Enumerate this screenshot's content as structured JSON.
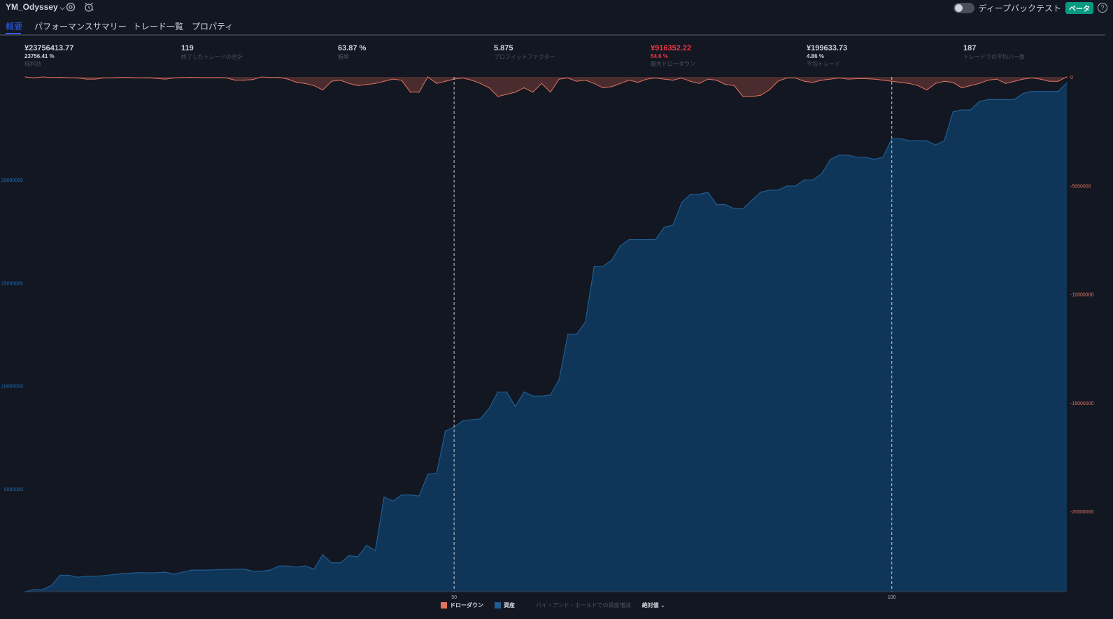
{
  "header": {
    "strategy_name": "YM_Odyssey",
    "deep_backtest_label": "ディープバックテスト",
    "beta_badge": "ベータ",
    "help_symbol": "?",
    "icons": [
      "chevron-down-icon",
      "settings-icon",
      "alarm-clock-icon",
      "help-icon"
    ]
  },
  "tabs": [
    {
      "label": "概要",
      "active": true
    },
    {
      "label": "パフォーマンスサマリー",
      "active": false
    },
    {
      "label": "トレード一覧",
      "active": false
    },
    {
      "label": "プロパティ",
      "active": false
    }
  ],
  "metrics": [
    {
      "value": "¥23756413.77",
      "sub": "23756.41 %",
      "label": "純利益",
      "negative": false
    },
    {
      "value": "119",
      "sub": "",
      "label": "終了したトレードの合計",
      "negative": false
    },
    {
      "value": "63.87 %",
      "sub": "",
      "label": "勝率",
      "negative": false
    },
    {
      "value": "5.875",
      "sub": "",
      "label": "プロフィットファクター",
      "negative": false
    },
    {
      "value": "¥916352.22",
      "sub": "54.6 %",
      "label": "最大ドローダウン",
      "negative": true
    },
    {
      "value": "¥199633.73",
      "sub": "4.86 %",
      "label": "平均トレード",
      "negative": false
    },
    {
      "value": "187",
      "sub": "",
      "label": "トレードでの平均バー数",
      "negative": false
    }
  ],
  "legend": {
    "drawdown_label": "ドローダウン",
    "equity_label": "資産",
    "buy_hold_label": "バイ・アンド・ホールドでの資産増減",
    "mode_label": "絶対値",
    "mode_chevron": "⌄"
  },
  "colors": {
    "background": "#131722",
    "equity_fill": "#0f3658",
    "equity_line": "#1e5d93",
    "drawdown_fill": "#4a2c2f",
    "drawdown_line": "#e0745f",
    "accent": "#2962ff",
    "left_axis_text": "#1e6fb8",
    "right_axis_text": "#e0745f"
  },
  "chart_data": {
    "type": "area",
    "x_range": [
      1,
      120
    ],
    "x_ticks": [
      50,
      100
    ],
    "left_axis": {
      "ticks": [
        5000000,
        10000000,
        15000000,
        20000000
      ],
      "labels": [
        "5000000",
        "10000000",
        "15000000",
        "20000000"
      ],
      "range": [
        0,
        25000000
      ]
    },
    "right_axis": {
      "ticks": [
        0,
        -5000000,
        -10000000,
        -15000000,
        -20000000
      ],
      "labels": [
        "0",
        "-5000000",
        "-10000000",
        "-15000000",
        "-20000000"
      ],
      "range": [
        -23700000,
        0
      ]
    },
    "grid": false,
    "vertical_markers": [
      50,
      100
    ],
    "series": [
      {
        "name": "資産",
        "axis": "left",
        "values": [
          0,
          100000,
          100000,
          300000,
          800000,
          800000,
          700000,
          750000,
          750000,
          780000,
          830000,
          870000,
          900000,
          930000,
          920000,
          920000,
          950000,
          850000,
          950000,
          1050000,
          1050000,
          1050000,
          1070000,
          1080000,
          1090000,
          1100000,
          1000000,
          1000000,
          1050000,
          1250000,
          1250000,
          1200000,
          1250000,
          1100000,
          1800000,
          1400000,
          1400000,
          1750000,
          1700000,
          2250000,
          2000000,
          4600000,
          4400000,
          4700000,
          4700000,
          4650000,
          5700000,
          5750000,
          7800000,
          8000000,
          8300000,
          8350000,
          8400000,
          8900000,
          9700000,
          9700000,
          9000000,
          9700000,
          9500000,
          9500000,
          9550000,
          10300000,
          12500000,
          12500000,
          13100000,
          15800000,
          15800000,
          16100000,
          16800000,
          17100000,
          17100000,
          17100000,
          17100000,
          17700000,
          17800000,
          18900000,
          19300000,
          19300000,
          19400000,
          18800000,
          18800000,
          18600000,
          18600000,
          19000000,
          19400000,
          19500000,
          19500000,
          19700000,
          19700000,
          20000000,
          20000000,
          20300000,
          21000000,
          21200000,
          21200000,
          21100000,
          21100000,
          21000000,
          21100000,
          22000000,
          22000000,
          21900000,
          21900000,
          21900000,
          21700000,
          21900000,
          23300000,
          23400000,
          23400000,
          23800000,
          23900000,
          23900000,
          23900000,
          23900000,
          24200000,
          24300000,
          24300000,
          24300000,
          24300000,
          24700000
        ]
      },
      {
        "name": "ドローダウン",
        "axis": "right",
        "values": [
          0,
          -50000,
          0,
          -30000,
          -20000,
          -40000,
          -50000,
          -100000,
          -100000,
          -50000,
          -50000,
          -20000,
          -30000,
          -50000,
          -40000,
          -70000,
          -100000,
          -50000,
          -30000,
          -20000,
          -30000,
          -40000,
          -30000,
          -50000,
          -150000,
          -150000,
          -120000,
          0,
          -30000,
          -20000,
          -100000,
          -250000,
          -300000,
          -400000,
          -600000,
          -200000,
          -150000,
          -300000,
          -400000,
          -350000,
          -300000,
          -200000,
          -100000,
          -150000,
          -700000,
          -700000,
          0,
          -300000,
          -200000,
          -100000,
          -50000,
          -150000,
          -300000,
          -500000,
          -900000,
          -800000,
          -700000,
          -500000,
          -700000,
          -300000,
          -700000,
          -100000,
          -50000,
          -200000,
          -150000,
          -300000,
          -500000,
          -450000,
          -300000,
          -150000,
          -250000,
          -100000,
          -50000,
          -100000,
          -150000,
          -50000,
          -200000,
          -300000,
          -100000,
          -150000,
          -350000,
          -400000,
          -900000,
          -900000,
          -850000,
          -600000,
          -200000,
          -50000,
          -50000,
          -200000,
          -250000,
          -150000,
          -100000,
          -50000,
          -100000,
          -80000,
          -80000,
          -100000,
          -150000,
          -200000,
          -250000,
          -300000,
          -400000,
          -600000,
          -300000,
          -200000,
          -250000,
          -500000,
          -400000,
          -300000,
          -150000,
          -100000,
          -300000,
          -200000,
          -100000,
          -50000,
          -100000,
          -200000,
          -200000,
          0
        ]
      }
    ]
  }
}
